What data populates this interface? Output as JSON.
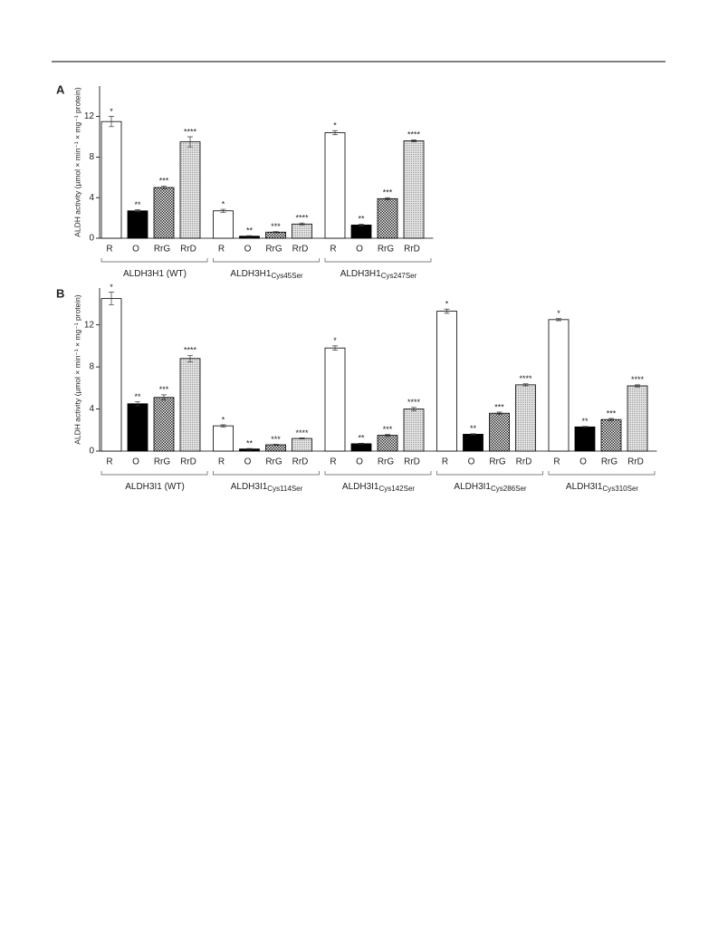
{
  "chart_data": [
    {
      "type": "bar",
      "panel": "A",
      "y_label": "ALDH activity (µmol × min⁻¹ × mg⁻¹ protein)",
      "categories": [
        {
          "label": "ALDH3H1 (WT)"
        },
        {
          "label": "ALDH3H1",
          "sub": "Cys45Ser"
        },
        {
          "label": "ALDH3H1",
          "sub": "Cys247Ser"
        }
      ],
      "series": [
        {
          "name": "R",
          "color": "#ffffff",
          "pattern": "none",
          "annotation": "*",
          "values": [
            11.5,
            2.7,
            10.4
          ],
          "errors": [
            0.5,
            0.15,
            0.2
          ]
        },
        {
          "name": "O",
          "color": "#000000",
          "pattern": "none",
          "annotation": "**",
          "values": [
            2.7,
            0.2,
            1.3
          ],
          "errors": [
            0.1,
            0.05,
            0.1
          ]
        },
        {
          "name": "RrG",
          "color": "#333333",
          "pattern": "checker",
          "annotation": "***",
          "values": [
            5.0,
            0.6,
            3.9
          ],
          "errors": [
            0.15,
            0.05,
            0.1
          ]
        },
        {
          "name": "RrD",
          "color": "#d0d0d0",
          "pattern": "dots",
          "annotation": "****",
          "values": [
            9.5,
            1.4,
            9.6
          ],
          "errors": [
            0.5,
            0.1,
            0.1
          ]
        }
      ],
      "ylim": [
        0,
        15
      ],
      "yticks": [
        0,
        4,
        8,
        12
      ]
    },
    {
      "type": "bar",
      "panel": "B",
      "y_label": "ALDH activity (µmol × min⁻¹ × mg⁻¹ protein)",
      "categories": [
        {
          "label": "ALDH3I1 (WT)"
        },
        {
          "label": "ALDH3I1",
          "sub": "Cys114Ser"
        },
        {
          "label": "ALDH3I1",
          "sub": "Cys142Ser"
        },
        {
          "label": "ALDH3I1",
          "sub": "Cys286Ser"
        },
        {
          "label": "ALDH3I1",
          "sub": "Cys310Ser"
        }
      ],
      "series": [
        {
          "name": "R",
          "color": "#ffffff",
          "pattern": "none",
          "annotation": "*",
          "values": [
            14.5,
            2.4,
            9.8,
            13.3,
            12.5
          ],
          "errors": [
            0.6,
            0.1,
            0.2,
            0.2,
            0.1
          ]
        },
        {
          "name": "O",
          "color": "#000000",
          "pattern": "none",
          "annotation": "**",
          "values": [
            4.5,
            0.2,
            0.7,
            1.6,
            2.3
          ],
          "errors": [
            0.2,
            0.05,
            0.05,
            0.05,
            0.05
          ]
        },
        {
          "name": "RrG",
          "color": "#333333",
          "pattern": "checker",
          "annotation": "***",
          "values": [
            5.1,
            0.6,
            1.5,
            3.6,
            3.0
          ],
          "errors": [
            0.25,
            0.05,
            0.1,
            0.1,
            0.1
          ]
        },
        {
          "name": "RrD",
          "color": "#d0d0d0",
          "pattern": "dots",
          "annotation": "****",
          "values": [
            8.8,
            1.2,
            4.0,
            6.3,
            6.2
          ],
          "errors": [
            0.3,
            0.05,
            0.15,
            0.1,
            0.1
          ]
        }
      ],
      "ylim": [
        0,
        15.5
      ],
      "yticks": [
        0,
        4,
        8,
        12
      ]
    }
  ]
}
